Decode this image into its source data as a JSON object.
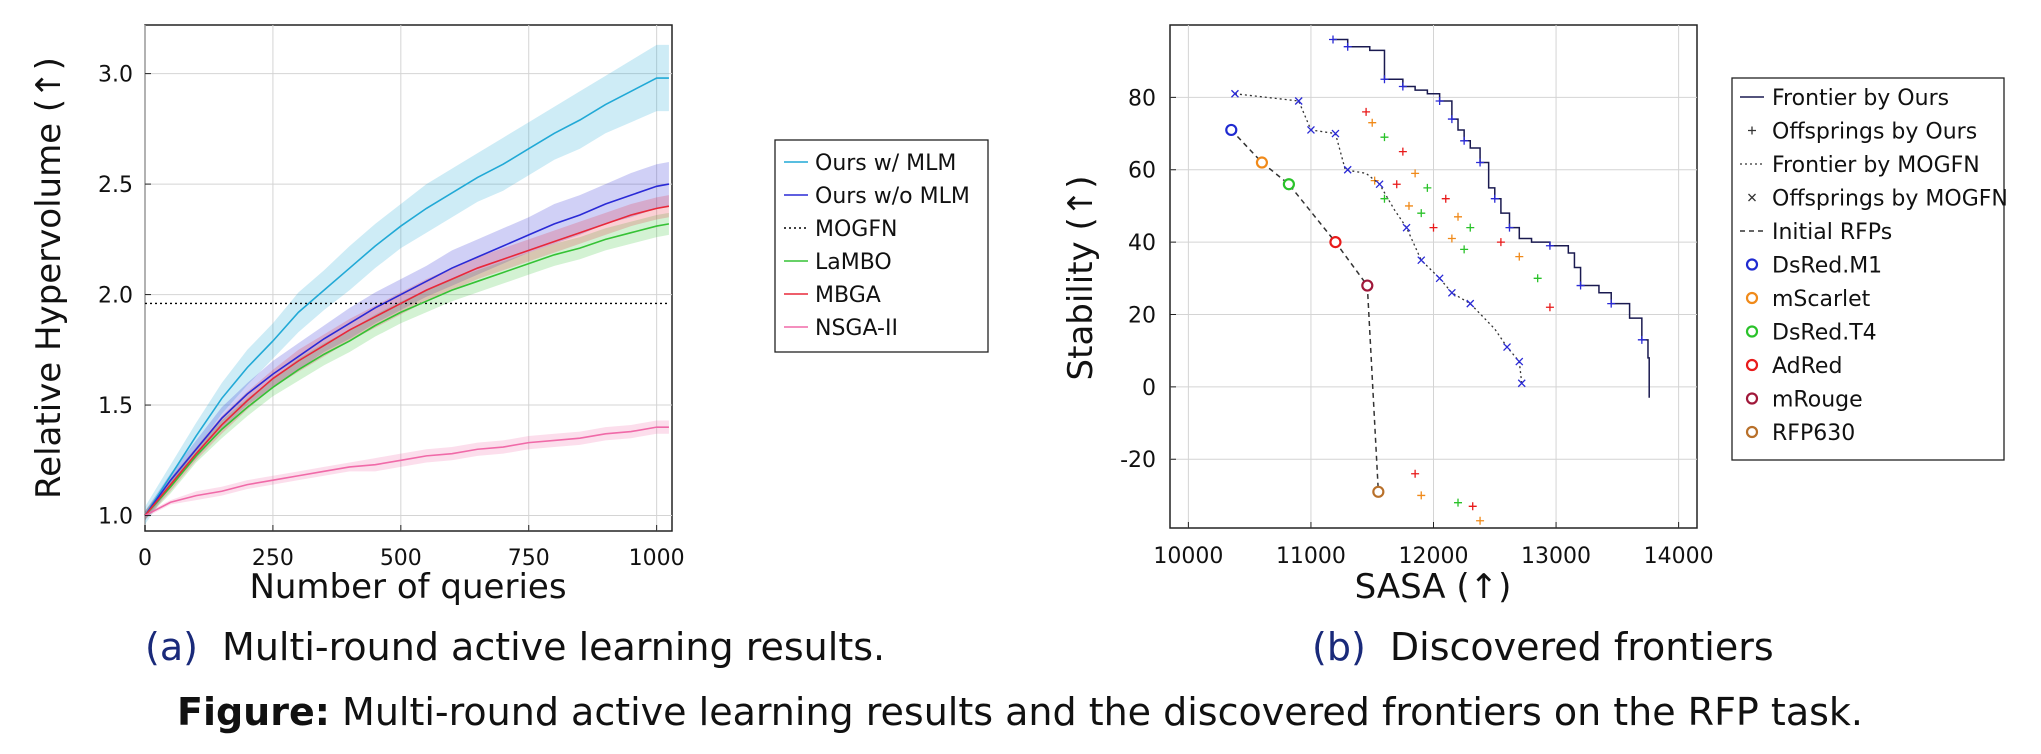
{
  "figure": {
    "caption_bold": "Figure:",
    "caption_text": " Multi-round active learning results and the discovered frontiers on the RFP task."
  },
  "colors": {
    "ours_mlm": "#21a9d6",
    "ours_nomlm": "#2a2ad6",
    "mogfn": "#000000",
    "lambo": "#35c235",
    "mbga": "#e8283a",
    "nsga": "#f06aa8",
    "dsred_m1": "#1f2ad0",
    "mscarlet": "#f08a1a",
    "dsred_t4": "#2ac22a",
    "adred": "#e81a1a",
    "mrouge": "#a0183a",
    "rfp630": "#b8702a"
  },
  "chart_data": [
    {
      "type": "line",
      "label": "(a)",
      "caption": "Multi-round active learning results.",
      "xlabel": "Number of queries",
      "ylabel": "Relative Hypervolume (↑)",
      "xlim": [
        0,
        1030
      ],
      "ylim": [
        0.93,
        3.22
      ],
      "xticks": [
        0,
        250,
        500,
        750,
        1000
      ],
      "yticks": [
        1.0,
        1.5,
        2.0,
        2.5,
        3.0
      ],
      "xtick_labels": [
        "0",
        "250",
        "500",
        "750",
        "1000"
      ],
      "ytick_labels": [
        "1.0",
        "1.5",
        "2.0",
        "2.5",
        "3.0"
      ],
      "grid": true,
      "legend_position": "outside-right",
      "x": [
        0,
        50,
        100,
        150,
        200,
        250,
        300,
        350,
        400,
        450,
        500,
        550,
        600,
        650,
        700,
        750,
        800,
        850,
        900,
        950,
        1000,
        1024
      ],
      "series": [
        {
          "name": "Ours w/ MLM",
          "color_key": "ours_mlm",
          "dash": "solid",
          "values": [
            1.0,
            1.18,
            1.36,
            1.53,
            1.67,
            1.79,
            1.92,
            2.02,
            2.12,
            2.22,
            2.31,
            2.39,
            2.46,
            2.53,
            2.59,
            2.66,
            2.73,
            2.79,
            2.86,
            2.92,
            2.98,
            2.98
          ],
          "band": [
            0.04,
            0.05,
            0.06,
            0.07,
            0.08,
            0.08,
            0.09,
            0.09,
            0.1,
            0.1,
            0.1,
            0.11,
            0.11,
            0.11,
            0.12,
            0.12,
            0.12,
            0.13,
            0.13,
            0.14,
            0.15,
            0.15
          ]
        },
        {
          "name": "Ours w/o MLM",
          "color_key": "ours_nomlm",
          "dash": "solid",
          "values": [
            1.0,
            1.16,
            1.3,
            1.44,
            1.55,
            1.64,
            1.72,
            1.8,
            1.87,
            1.94,
            2.0,
            2.06,
            2.12,
            2.17,
            2.22,
            2.27,
            2.32,
            2.36,
            2.41,
            2.45,
            2.49,
            2.5
          ],
          "band": [
            0.02,
            0.03,
            0.04,
            0.05,
            0.05,
            0.06,
            0.06,
            0.06,
            0.07,
            0.07,
            0.07,
            0.07,
            0.08,
            0.08,
            0.08,
            0.08,
            0.09,
            0.09,
            0.09,
            0.1,
            0.1,
            0.1
          ]
        },
        {
          "name": "MOGFN",
          "color_key": "mogfn",
          "dash": "dotted",
          "values": [
            1.96,
            1.96,
            1.96,
            1.96,
            1.96,
            1.96,
            1.96,
            1.96,
            1.96,
            1.96,
            1.96,
            1.96,
            1.96,
            1.96,
            1.96,
            1.96,
            1.96,
            1.96,
            1.96,
            1.96,
            1.96,
            1.96
          ]
        },
        {
          "name": "LaMBO",
          "color_key": "lambo",
          "dash": "solid",
          "values": [
            1.0,
            1.13,
            1.27,
            1.39,
            1.49,
            1.58,
            1.66,
            1.73,
            1.79,
            1.86,
            1.92,
            1.97,
            2.02,
            2.06,
            2.1,
            2.14,
            2.18,
            2.21,
            2.25,
            2.28,
            2.31,
            2.32
          ],
          "band": [
            0.02,
            0.03,
            0.03,
            0.04,
            0.04,
            0.04,
            0.05,
            0.05,
            0.05,
            0.05,
            0.05,
            0.05,
            0.05,
            0.05,
            0.05,
            0.05,
            0.05,
            0.05,
            0.05,
            0.05,
            0.05,
            0.05
          ]
        },
        {
          "name": "MBGA",
          "color_key": "mbga",
          "dash": "solid",
          "values": [
            1.0,
            1.14,
            1.28,
            1.41,
            1.52,
            1.62,
            1.7,
            1.77,
            1.84,
            1.9,
            1.96,
            2.02,
            2.07,
            2.12,
            2.16,
            2.2,
            2.24,
            2.28,
            2.32,
            2.36,
            2.39,
            2.4
          ],
          "band": [
            0.02,
            0.03,
            0.03,
            0.04,
            0.04,
            0.04,
            0.05,
            0.05,
            0.05,
            0.05,
            0.05,
            0.05,
            0.05,
            0.05,
            0.05,
            0.05,
            0.05,
            0.05,
            0.05,
            0.05,
            0.05,
            0.05
          ]
        },
        {
          "name": "NSGA-II",
          "color_key": "nsga",
          "dash": "solid",
          "values": [
            1.0,
            1.06,
            1.09,
            1.11,
            1.14,
            1.16,
            1.18,
            1.2,
            1.22,
            1.23,
            1.25,
            1.27,
            1.28,
            1.3,
            1.31,
            1.33,
            1.34,
            1.35,
            1.37,
            1.38,
            1.4,
            1.4
          ],
          "band": [
            0.01,
            0.01,
            0.02,
            0.02,
            0.02,
            0.02,
            0.02,
            0.02,
            0.02,
            0.03,
            0.03,
            0.03,
            0.03,
            0.03,
            0.03,
            0.03,
            0.03,
            0.03,
            0.03,
            0.03,
            0.03,
            0.03
          ]
        }
      ]
    },
    {
      "type": "scatter",
      "label": "(b)",
      "caption": "Discovered frontiers",
      "xlabel": "SASA (↑)",
      "ylabel": "Stability (↑)",
      "xlim": [
        9850,
        14150
      ],
      "ylim": [
        -39,
        100
      ],
      "xticks": [
        10000,
        11000,
        12000,
        13000,
        14000
      ],
      "yticks": [
        -20,
        0,
        20,
        40,
        60,
        80
      ],
      "xtick_labels": [
        "10000",
        "11000",
        "12000",
        "13000",
        "14000"
      ],
      "ytick_labels": [
        "-20",
        "0",
        "20",
        "40",
        "60",
        "80"
      ],
      "grid": true,
      "legend_position": "outside-right",
      "series": [
        {
          "name": "Frontier by Ours",
          "kind": "step",
          "color_key": "ours_nomlm",
          "points": [
            [
              11180,
              96
            ],
            [
              11300,
              94
            ],
            [
              11480,
              93
            ],
            [
              11600,
              85
            ],
            [
              11750,
              83
            ],
            [
              11850,
              82
            ],
            [
              11950,
              81
            ],
            [
              12050,
              79
            ],
            [
              12150,
              74
            ],
            [
              12200,
              71
            ],
            [
              12250,
              68
            ],
            [
              12300,
              66
            ],
            [
              12380,
              62
            ],
            [
              12450,
              55
            ],
            [
              12500,
              52
            ],
            [
              12550,
              48
            ],
            [
              12620,
              44
            ],
            [
              12700,
              41
            ],
            [
              12800,
              40
            ],
            [
              12950,
              39
            ],
            [
              13100,
              37
            ],
            [
              13150,
              33
            ],
            [
              13200,
              28
            ],
            [
              13350,
              26
            ],
            [
              13450,
              23
            ],
            [
              13600,
              19
            ],
            [
              13700,
              13
            ],
            [
              13750,
              8
            ],
            [
              13760,
              -3
            ]
          ]
        },
        {
          "name": "Offsprings by Ours",
          "kind": "plus",
          "color_key": "ours_nomlm",
          "points": [
            [
              11180,
              96
            ],
            [
              11300,
              94
            ],
            [
              11600,
              85
            ],
            [
              11750,
              83
            ],
            [
              12050,
              79
            ],
            [
              12150,
              74
            ],
            [
              12250,
              68
            ],
            [
              12380,
              62
            ],
            [
              12500,
              52
            ],
            [
              12620,
              44
            ],
            [
              12950,
              39
            ],
            [
              13200,
              28
            ],
            [
              13450,
              23
            ],
            [
              13700,
              13
            ],
            [
              11450,
              76
            ],
            [
              11500,
              73
            ],
            [
              11600,
              69
            ],
            [
              11750,
              65
            ],
            [
              11850,
              59
            ],
            [
              11950,
              55
            ],
            [
              12100,
              52
            ],
            [
              12200,
              47
            ],
            [
              12300,
              44
            ],
            [
              12550,
              40
            ],
            [
              12700,
              36
            ],
            [
              12850,
              30
            ],
            [
              12950,
              22
            ],
            [
              11520,
              57
            ],
            [
              11600,
              52
            ],
            [
              11700,
              56
            ],
            [
              11800,
              50
            ],
            [
              11900,
              48
            ],
            [
              12000,
              44
            ],
            [
              12150,
              41
            ],
            [
              12250,
              38
            ],
            [
              11850,
              -24
            ],
            [
              11900,
              -30
            ],
            [
              12200,
              -32
            ],
            [
              12320,
              -33
            ],
            [
              12380,
              -37
            ]
          ]
        },
        {
          "name": "Frontier by MOGFN",
          "kind": "dotted-line",
          "color_key": "mogfn",
          "points": [
            [
              10380,
              81
            ],
            [
              10900,
              79
            ],
            [
              11000,
              71
            ],
            [
              11200,
              70
            ],
            [
              11280,
              60
            ],
            [
              11450,
              59
            ],
            [
              11560,
              56
            ],
            [
              11680,
              49
            ],
            [
              11780,
              44
            ],
            [
              11900,
              35
            ],
            [
              12050,
              30
            ],
            [
              12150,
              26
            ],
            [
              12300,
              23
            ],
            [
              12500,
              16
            ],
            [
              12600,
              11
            ],
            [
              12700,
              7
            ],
            [
              12720,
              1
            ]
          ]
        },
        {
          "name": "Offsprings by MOGFN",
          "kind": "x",
          "color_key": "ours_nomlm",
          "points": [
            [
              10380,
              81
            ],
            [
              10900,
              79
            ],
            [
              11200,
              70
            ],
            [
              11300,
              60
            ],
            [
              11560,
              56
            ],
            [
              11900,
              35
            ],
            [
              12050,
              30
            ],
            [
              12150,
              26
            ],
            [
              12300,
              23
            ],
            [
              12600,
              11
            ],
            [
              12700,
              7
            ],
            [
              12720,
              1
            ],
            [
              11000,
              71
            ],
            [
              11780,
              44
            ]
          ]
        },
        {
          "name": "Initial RFPs",
          "kind": "dashed-line",
          "color_key": "mogfn",
          "points": [
            [
              10350,
              71
            ],
            [
              10600,
              62
            ],
            [
              10820,
              56
            ],
            [
              11200,
              40
            ],
            [
              11460,
              28
            ],
            [
              11550,
              -29
            ]
          ]
        },
        {
          "name": "DsRed.M1",
          "kind": "circle",
          "color_key": "dsred_m1",
          "points": [
            [
              10350,
              71
            ]
          ]
        },
        {
          "name": "mScarlet",
          "kind": "circle",
          "color_key": "mscarlet",
          "points": [
            [
              10600,
              62
            ]
          ]
        },
        {
          "name": "DsRed.T4",
          "kind": "circle",
          "color_key": "dsred_t4",
          "points": [
            [
              10820,
              56
            ]
          ]
        },
        {
          "name": "AdRed",
          "kind": "circle",
          "color_key": "adred",
          "points": [
            [
              11200,
              40
            ]
          ]
        },
        {
          "name": "mRouge",
          "kind": "circle",
          "color_key": "mrouge",
          "points": [
            [
              11460,
              28
            ]
          ]
        },
        {
          "name": "RFP630",
          "kind": "circle",
          "color_key": "rfp630",
          "points": [
            [
              11550,
              -29
            ]
          ]
        }
      ]
    }
  ]
}
